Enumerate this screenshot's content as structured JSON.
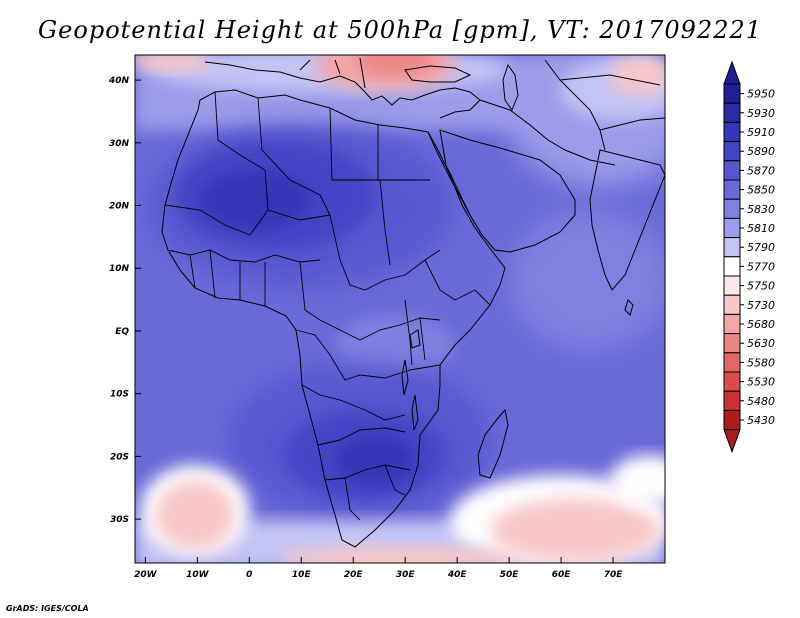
{
  "title": "Geopotential Height at 500hPa [gpm], VT: 2017092221",
  "footer": "GrADS: IGES/COLA",
  "map": {
    "lat_labels": [
      "40N",
      "30N",
      "20N",
      "10N",
      "EQ",
      "10S",
      "20S",
      "30S"
    ],
    "lat_values": [
      40,
      30,
      20,
      10,
      0,
      -10,
      -20,
      -30
    ],
    "lon_labels": [
      "20W",
      "10W",
      "0",
      "10E",
      "20E",
      "30E",
      "40E",
      "50E",
      "60E",
      "70E"
    ],
    "lon_values": [
      -20,
      -10,
      0,
      10,
      20,
      30,
      40,
      50,
      60,
      70
    ],
    "extent": {
      "lon_min": -22,
      "lon_max": 80,
      "lat_min": -37,
      "lat_max": 44
    }
  },
  "colorbar": {
    "labels": [
      "5950",
      "5930",
      "5910",
      "5890",
      "5870",
      "5850",
      "5830",
      "5810",
      "5790",
      "5770",
      "5750",
      "5730",
      "5680",
      "5630",
      "5580",
      "5530",
      "5480",
      "5430"
    ],
    "colors": [
      "#1e1e96",
      "#2a2aa8",
      "#3535b8",
      "#4444c6",
      "#5656d0",
      "#6a6ad8",
      "#8080e0",
      "#9c9cea",
      "#c4c4f4",
      "#ffffff",
      "#fce8e8",
      "#f8c8c8",
      "#f2a6a6",
      "#ec8686",
      "#e46666",
      "#dc4a4a",
      "#cc3030",
      "#b01c1c"
    ]
  }
}
